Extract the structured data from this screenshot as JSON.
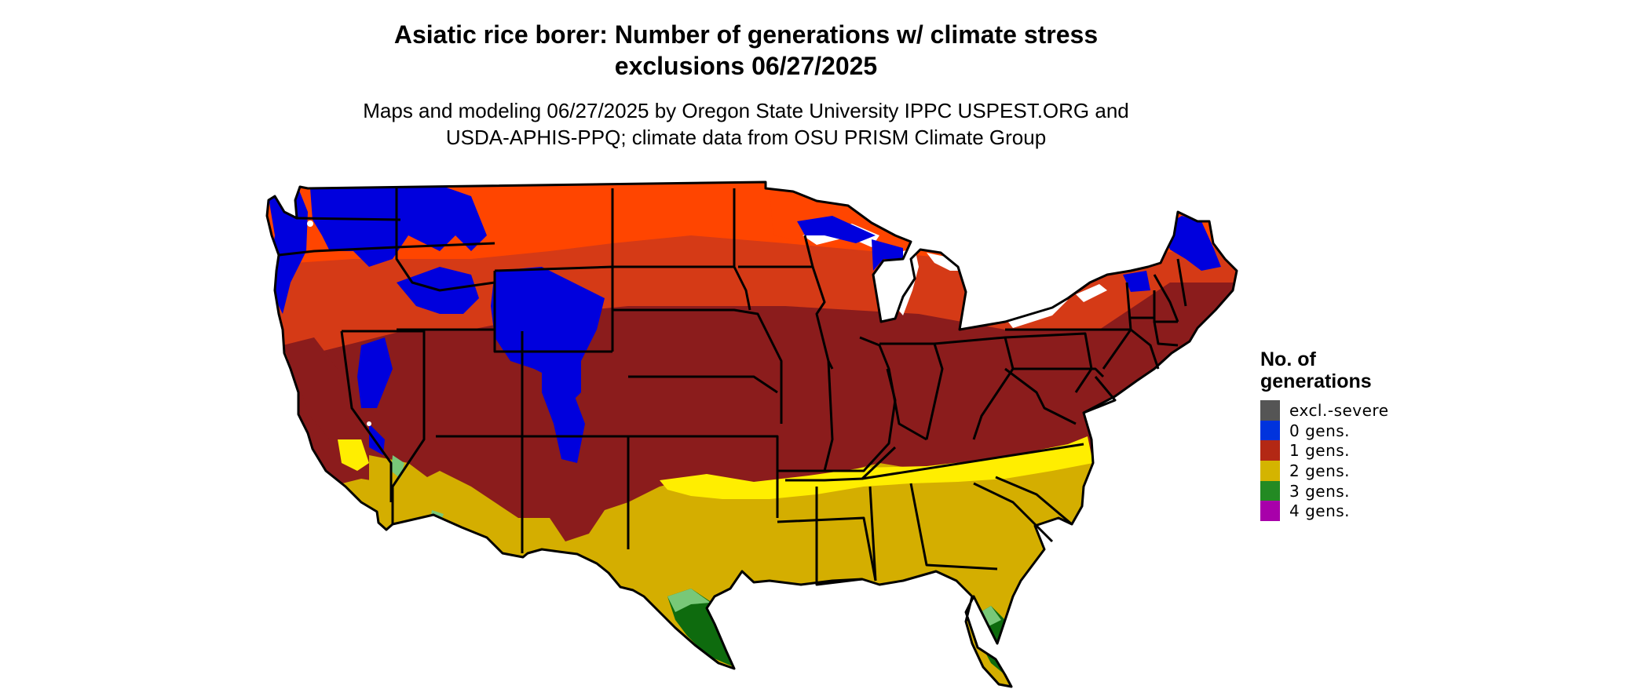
{
  "title_line1": "Asiatic rice borer: Number of generations w/ climate stress",
  "title_line2": "exclusions 06/27/2025",
  "subtitle_line1": "Maps and modeling 06/27/2025 by Oregon State University IPPC USPEST.ORG and",
  "subtitle_line2": "USDA-APHIS-PPQ; climate data from OSU PRISM Climate Group",
  "legend": {
    "title_line1": "No. of",
    "title_line2": "generations",
    "items": [
      {
        "label": "excl.-severe",
        "color": "#555555"
      },
      {
        "label": "0 gens.",
        "color": "#0033dd"
      },
      {
        "label": "1 gens.",
        "color": "#b32814"
      },
      {
        "label": "2 gens.",
        "color": "#d4b400"
      },
      {
        "label": "3 gens.",
        "color": "#238a23"
      },
      {
        "label": "4 gens.",
        "color": "#a800aa"
      }
    ]
  },
  "map": {
    "region": "contiguous-united-states",
    "colors": {
      "zero_gens": "#0000dd",
      "one_gen_north": "#ff4500",
      "one_gen_mid": "#d53a16",
      "one_gen_south": "#8b1c1c",
      "two_gens": "#d4ae00",
      "two_gens_bright": "#ffee00",
      "three_gens": "#0e6b0e",
      "three_gens_light": "#78c878",
      "water": "#ffffff",
      "borders": "#000000"
    }
  }
}
